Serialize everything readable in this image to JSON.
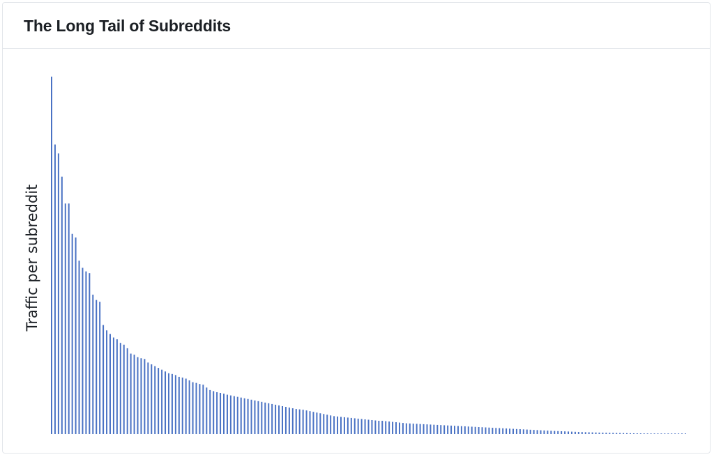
{
  "card": {
    "title": "The Long Tail of Subreddits"
  },
  "colors": {
    "bar": "#4a72c4",
    "title": "#1b1f24",
    "axis_label": "#1b1f24",
    "border": "#e3e6ea"
  },
  "chart_data": {
    "type": "bar",
    "title": "The Long Tail of Subreddits",
    "xlabel": "",
    "ylabel": "Traffic per subreddit",
    "grid": false,
    "legend": "none",
    "ylim": [
      0,
      100
    ],
    "values": [
      100,
      81,
      78.5,
      72,
      64.5,
      64.5,
      56,
      55,
      48.5,
      46.5,
      45.5,
      45,
      39,
      37.5,
      37,
      30.5,
      29,
      28,
      27,
      26.5,
      25.5,
      25,
      24,
      22.5,
      22.2,
      21.5,
      21.2,
      21,
      20,
      19.5,
      19,
      18.5,
      18,
      17.5,
      17,
      16.8,
      16.5,
      16,
      15.8,
      15.5,
      15,
      14.5,
      14.3,
      14,
      13.8,
      13,
      12.3,
      12,
      11.7,
      11.5,
      11.3,
      11,
      10.8,
      10.6,
      10.4,
      10.2,
      10,
      9.8,
      9.6,
      9.4,
      9.2,
      9,
      8.8,
      8.6,
      8.4,
      8.2,
      8,
      7.8,
      7.6,
      7.4,
      7.2,
      7,
      6.9,
      6.8,
      6.6,
      6.4,
      6.2,
      6,
      5.8,
      5.6,
      5.4,
      5.2,
      5,
      4.9,
      4.8,
      4.7,
      4.6,
      4.5,
      4.4,
      4.3,
      4.2,
      4.1,
      4,
      3.9,
      3.8,
      3.7,
      3.7,
      3.6,
      3.5,
      3.4,
      3.3,
      3.2,
      3.1,
      3,
      2.95,
      2.9,
      2.85,
      2.8,
      2.75,
      2.7,
      2.65,
      2.6,
      2.55,
      2.5,
      2.45,
      2.4,
      2.35,
      2.3,
      2.25,
      2.2,
      2.15,
      2.1,
      2.05,
      2,
      1.95,
      1.9,
      1.85,
      1.8,
      1.75,
      1.7,
      1.65,
      1.6,
      1.55,
      1.5,
      1.45,
      1.4,
      1.35,
      1.3,
      1.25,
      1.2,
      1.15,
      1.1,
      1.05,
      1,
      0.95,
      0.9,
      0.86,
      0.82,
      0.78,
      0.74,
      0.7,
      0.66,
      0.62,
      0.58,
      0.55,
      0.52,
      0.49,
      0.46,
      0.43,
      0.4,
      0.38,
      0.36,
      0.34,
      0.32,
      0.3,
      0.28,
      0.26,
      0.24,
      0.22,
      0.2,
      0.19,
      0.18,
      0.17,
      0.16,
      0.15,
      0.14,
      0.13,
      0.12,
      0.11,
      0.1,
      0.09,
      0.08,
      0.07,
      0.06,
      0.05
    ]
  }
}
